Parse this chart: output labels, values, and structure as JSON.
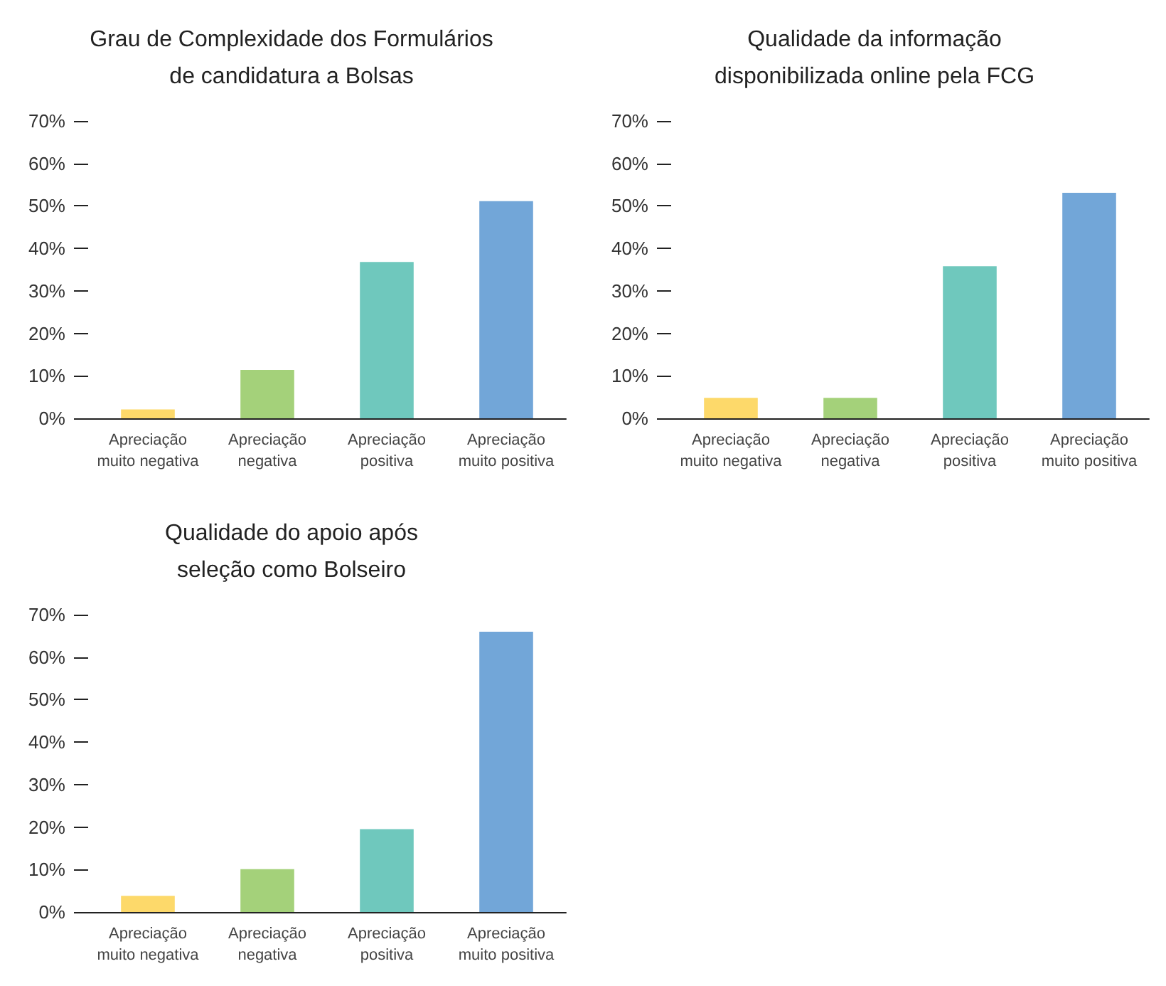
{
  "chart_data": [
    {
      "type": "bar",
      "title": "Grau de Complexidade dos Formulários\nde candidatura a Bolsas",
      "categories": [
        "Apreciação\nmuito negativa",
        "Apreciação\nnegativa",
        "Apreciação\npositiva",
        "Apreciação\nmuito positiva"
      ],
      "values": [
        2.1,
        11.4,
        36.8,
        51.1
      ],
      "colors": [
        "#fdd96a",
        "#a4d17a",
        "#6fc8bd",
        "#72a6d8"
      ],
      "ylim": [
        0,
        70
      ],
      "yticks": [
        {
          "value": 0,
          "label": "0%"
        },
        {
          "value": 10,
          "label": "10%"
        },
        {
          "value": 20,
          "label": "20%"
        },
        {
          "value": 30,
          "label": "30%"
        },
        {
          "value": 40,
          "label": "40%"
        },
        {
          "value": 50,
          "label": "50%"
        },
        {
          "value": 60,
          "label": "60%"
        },
        {
          "value": 70,
          "label": "70%"
        }
      ]
    },
    {
      "type": "bar",
      "title": "Qualidade da informação\ndisponibilizada online pela FCG",
      "categories": [
        "Apreciação\nmuito negativa",
        "Apreciação\nnegativa",
        "Apreciação\npositiva",
        "Apreciação\nmuito positiva"
      ],
      "values": [
        4.8,
        4.8,
        35.8,
        53.1
      ],
      "colors": [
        "#fdd96a",
        "#a4d17a",
        "#6fc8bd",
        "#72a6d8"
      ],
      "ylim": [
        0,
        70
      ],
      "yticks": [
        {
          "value": 0,
          "label": "0%"
        },
        {
          "value": 10,
          "label": "10%"
        },
        {
          "value": 20,
          "label": "20%"
        },
        {
          "value": 30,
          "label": "30%"
        },
        {
          "value": 40,
          "label": "40%"
        },
        {
          "value": 50,
          "label": "50%"
        },
        {
          "value": 60,
          "label": "60%"
        },
        {
          "value": 70,
          "label": "70%"
        }
      ]
    },
    {
      "type": "bar",
      "title": "Qualidade do apoio após\nseleção como Bolseiro",
      "categories": [
        "Apreciação\nmuito negativa",
        "Apreciação\nnegativa",
        "Apreciação\npositiva",
        "Apreciação\nmuito positiva"
      ],
      "values": [
        3.8,
        10.1,
        19.5,
        66.0
      ],
      "colors": [
        "#fdd96a",
        "#a4d17a",
        "#6fc8bd",
        "#72a6d8"
      ],
      "ylim": [
        0,
        70
      ],
      "yticks": [
        {
          "value": 0,
          "label": "0%"
        },
        {
          "value": 10,
          "label": "10%"
        },
        {
          "value": 20,
          "label": "20%"
        },
        {
          "value": 30,
          "label": "30%"
        },
        {
          "value": 40,
          "label": "40%"
        },
        {
          "value": 50,
          "label": "50%"
        },
        {
          "value": 60,
          "label": "60%"
        },
        {
          "value": 70,
          "label": "70%"
        }
      ]
    }
  ]
}
